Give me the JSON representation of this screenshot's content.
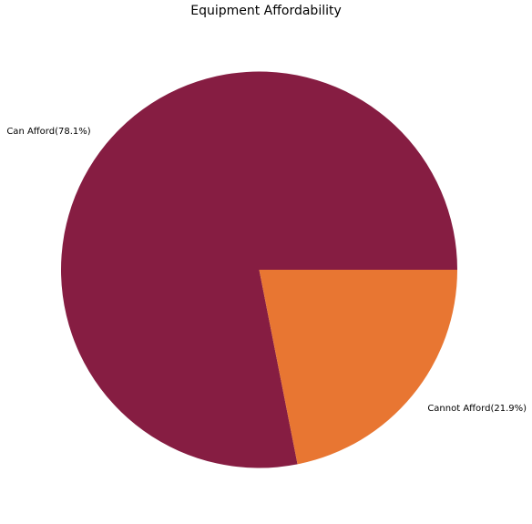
{
  "chart_data": {
    "type": "pie",
    "title": "Equipment Affordability",
    "slices": [
      {
        "label": "Can Afford(78.1%)",
        "value": 78.1,
        "color": "#861d42"
      },
      {
        "label": "Cannot Afford(21.9%)",
        "value": 21.9,
        "color": "#e87632"
      }
    ],
    "start_angle_deg": 0,
    "direction": "counterclockwise",
    "legend": "none"
  }
}
